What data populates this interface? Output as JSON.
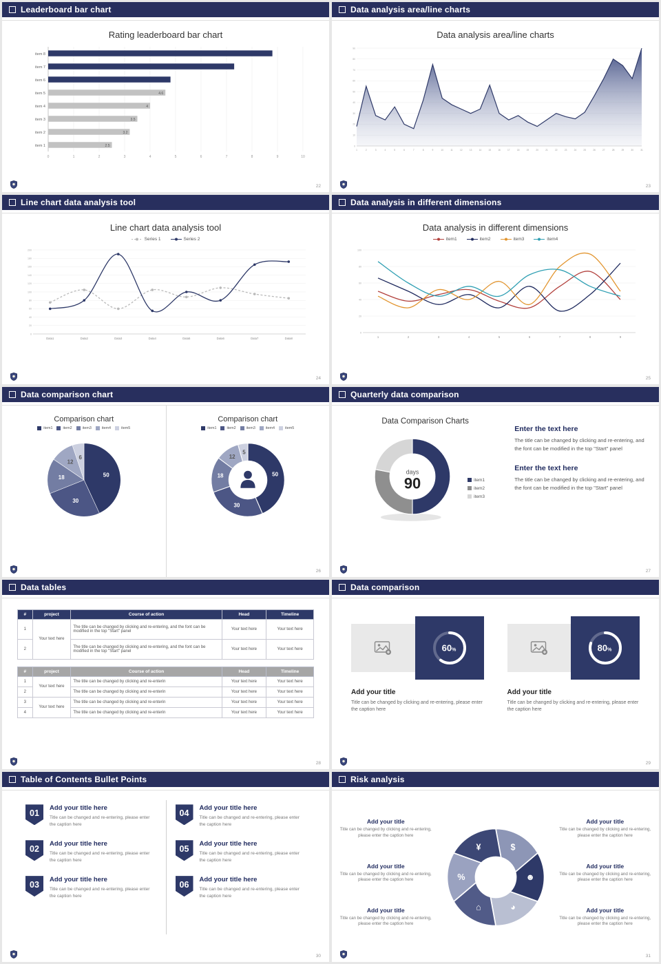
{
  "theme": {
    "header_bg": "#282f5e",
    "navy": "#2e3968",
    "gray_bar": "#c2c2c2"
  },
  "slides": {
    "s1": {
      "header": "Leaderboard bar chart",
      "page": "22",
      "title": "Rating leaderboard bar chart",
      "chart_data": {
        "type": "hbar",
        "categories": [
          "item 1",
          "item 2",
          "item 3",
          "item 4",
          "item 5",
          "item 6",
          "item 7",
          "item 8"
        ],
        "values": [
          2.5,
          3.2,
          3.5,
          4,
          4.6,
          4.8,
          7.3,
          8.8
        ],
        "value_labels": [
          "2.5",
          "3.2",
          "3.5",
          "4",
          "4.6",
          "",
          "",
          ""
        ],
        "bar_colors": [
          "#c2c2c2",
          "#c2c2c2",
          "#c2c2c2",
          "#c2c2c2",
          "#c2c2c2",
          "#2e3968",
          "#2e3968",
          "#2e3968"
        ],
        "xlim": [
          0,
          10
        ],
        "x_ticks": [
          0,
          1,
          2,
          3,
          4,
          5,
          6,
          7,
          8,
          9,
          10
        ]
      }
    },
    "s2": {
      "header": "Data analysis area/line charts",
      "page": "23",
      "title": "Data analysis area/line charts",
      "chart_data": {
        "type": "area",
        "x": [
          1,
          2,
          3,
          4,
          5,
          6,
          7,
          8,
          9,
          10,
          11,
          12,
          13,
          14,
          15,
          16,
          17,
          18,
          19,
          20,
          21,
          22,
          23,
          24,
          25,
          26,
          27,
          28,
          29,
          30,
          31
        ],
        "values": [
          18,
          55,
          28,
          24,
          36,
          20,
          16,
          42,
          75,
          44,
          38,
          34,
          30,
          34,
          56,
          30,
          24,
          28,
          22,
          18,
          24,
          30,
          27,
          25,
          31,
          46,
          62,
          80,
          74,
          62,
          90
        ],
        "ylim": [
          0,
          90
        ],
        "y_ticks": [
          0,
          10,
          20,
          30,
          40,
          50,
          60,
          70,
          80,
          90
        ],
        "line_color": "#2e3968"
      }
    },
    "s3": {
      "header": "Line chart data analysis tool",
      "page": "24",
      "title": "Line chart data analysis tool",
      "chart_data": {
        "type": "line",
        "categories": [
          "Data1",
          "Data2",
          "Data3",
          "Data4",
          "Data5",
          "Data6",
          "Data7",
          "Data8"
        ],
        "series": [
          {
            "name": "Series 1",
            "color": "#b9b9b9",
            "dash": "3,2.5",
            "values": [
              75,
              105,
              60,
              105,
              88,
              110,
              95,
              85
            ]
          },
          {
            "name": "Series 2",
            "color": "#2e3968",
            "values": [
              60,
              80,
              190,
              55,
              100,
              80,
              165,
              172
            ]
          }
        ],
        "ylim": [
          0,
          200
        ],
        "y_step": 20,
        "markers": true,
        "smooth": true
      }
    },
    "s4": {
      "header": "Data analysis in different dimensions",
      "page": "25",
      "title": "Data analysis in different dimensions",
      "chart_data": {
        "type": "line",
        "categories": [
          "1",
          "2",
          "3",
          "4",
          "5",
          "6",
          "7",
          "8",
          "9"
        ],
        "series": [
          {
            "name": "item1",
            "color": "#b2403c",
            "values": [
              50,
              38,
              46,
              52,
              38,
              30,
              56,
              74,
              40
            ]
          },
          {
            "name": "item2",
            "color": "#1f2a5e",
            "values": [
              66,
              50,
              34,
              46,
              30,
              56,
              26,
              46,
              84
            ]
          },
          {
            "name": "item3",
            "color": "#e2952f",
            "values": [
              44,
              30,
              52,
              40,
              62,
              34,
              80,
              95,
              50
            ]
          },
          {
            "name": "item4",
            "color": "#2f9fb3",
            "values": [
              86,
              60,
              44,
              56,
              44,
              70,
              76,
              56,
              44
            ]
          }
        ],
        "ylim": [
          0,
          100
        ],
        "y_step": 20,
        "markers": false,
        "smooth": true
      }
    },
    "s5": {
      "header": "Data comparison chart",
      "page": "26",
      "left": {
        "title": "Comparison chart",
        "legend": [
          {
            "label": "item1",
            "color": "#2e3968"
          },
          {
            "label": "item2",
            "color": "#4c5685"
          },
          {
            "label": "item3",
            "color": "#737da3"
          },
          {
            "label": "item4",
            "color": "#9fa7c3"
          },
          {
            "label": "item5",
            "color": "#ccd0e0"
          }
        ],
        "chart_data": {
          "type": "pie",
          "values": [
            50,
            30,
            18,
            12,
            6
          ],
          "labels": [
            "50",
            "30",
            "18",
            "12",
            "6"
          ],
          "colors": [
            "#2e3968",
            "#4c5685",
            "#737da3",
            "#9fa7c3",
            "#ccd0e0"
          ],
          "label_colors": [
            "#fff",
            "#fff",
            "#fff",
            "#555",
            "#555"
          ]
        }
      },
      "right": {
        "title": "Comparison chart",
        "legend": [
          {
            "label": "item1",
            "color": "#2e3968"
          },
          {
            "label": "item2",
            "color": "#4c5685"
          },
          {
            "label": "item3",
            "color": "#737da3"
          },
          {
            "label": "item4",
            "color": "#9fa7c3"
          },
          {
            "label": "item5",
            "color": "#ccd0e0"
          }
        ],
        "chart_data": {
          "type": "pie",
          "inner_ratio": 0.52,
          "values": [
            50,
            30,
            18,
            12,
            5
          ],
          "labels": [
            "50",
            "30",
            "18",
            "12",
            "5"
          ],
          "colors": [
            "#2e3968",
            "#4c5685",
            "#737da3",
            "#9fa7c3",
            "#ccd0e0"
          ],
          "label_colors": [
            "#fff",
            "#fff",
            "#fff",
            "#555",
            "#555"
          ],
          "center_icon": "person"
        }
      }
    },
    "s6": {
      "header": "Quarterly data comparison",
      "page": "27",
      "title": "Data Comparison Charts",
      "chart_data": {
        "type": "pie",
        "inner_ratio": 0.6,
        "values": [
          50,
          28,
          22
        ],
        "colors": [
          "#2e3968",
          "#8f8f8f",
          "#d6d6d6"
        ],
        "center_text": [
          "days",
          "90"
        ],
        "shadow": true
      },
      "legend": [
        {
          "label": "item1",
          "color": "#2e3968"
        },
        {
          "label": "item2",
          "color": "#8f8f8f"
        },
        {
          "label": "item3",
          "color": "#d6d6d6"
        }
      ],
      "blocks": [
        {
          "title": "Enter the text here",
          "body": "The title can be changed by clicking and re-entering, and the font can be modified in the top \"Start\" panel"
        },
        {
          "title": "Enter the text here",
          "body": "The title can be changed by clicking and re-entering, and the font can be modified in the top \"Start\" panel"
        }
      ]
    },
    "s7": {
      "header": "Data tables",
      "page": "28",
      "table1": {
        "header_bg": "#2e3968",
        "header": [
          "#",
          "project",
          "Course of action",
          "Head",
          "Timeline"
        ],
        "col_widths": [
          "5%",
          "13%",
          "51%",
          "15%",
          "16%"
        ],
        "rows": [
          [
            {
              "t": "1"
            },
            {
              "t": "Your text here",
              "rs": 2
            },
            {
              "t": "The title can be changed by clicking and re-entering, and the font can be modified in the top \"Start\" panel",
              "align": "left"
            },
            {
              "t": "Your text here"
            },
            {
              "t": "Your text here"
            }
          ],
          [
            {
              "t": "2"
            },
            {
              "t": "The title can be changed by clicking and re-entering, and the font can be modified in the top \"Start\" panel",
              "align": "left"
            },
            {
              "t": "Your text here"
            },
            {
              "t": "Your text here"
            }
          ]
        ]
      },
      "table2": {
        "header_bg": "#a6a6a6",
        "header": [
          "#",
          "project",
          "Course of action",
          "Head",
          "Timeline"
        ],
        "col_widths": [
          "5%",
          "13%",
          "51%",
          "15%",
          "16%"
        ],
        "rows": [
          [
            {
              "t": "1"
            },
            {
              "t": "Your text here",
              "rs": 2
            },
            {
              "t": "The title can be changed by clicking and re-enterin",
              "align": "left",
              "nowrap": true
            },
            {
              "t": "Your text here"
            },
            {
              "t": "Your text here"
            }
          ],
          [
            {
              "t": "2"
            },
            {
              "t": "The title can be changed by clicking and re-enterin",
              "align": "left",
              "nowrap": true
            },
            {
              "t": "Your text here"
            },
            {
              "t": "Your text here"
            }
          ],
          [
            {
              "t": "3"
            },
            {
              "t": "Your text here",
              "rs": 2
            },
            {
              "t": "The title can be changed by clicking and re-enterin",
              "align": "left",
              "nowrap": true
            },
            {
              "t": "Your text here"
            },
            {
              "t": "Your text here"
            }
          ],
          [
            {
              "t": "4"
            },
            {
              "t": "The title can be changed by clicking and re-enterin",
              "align": "left",
              "nowrap": true
            },
            {
              "t": "Your text here"
            },
            {
              "t": "Your text here"
            }
          ]
        ]
      }
    },
    "s8": {
      "header": "Data comparison",
      "page": "29",
      "cards": [
        {
          "ring": {
            "type": "progress",
            "percent": 60
          },
          "title": "Add your title",
          "caption": "Title can be changed by clicking and re-entering, please enter the caption here"
        },
        {
          "ring": {
            "type": "progress",
            "percent": 80
          },
          "title": "Add your title",
          "caption": "Title can be changed by clicking and re-entering, please enter the caption here"
        }
      ]
    },
    "s9": {
      "header": "Table of Contents Bullet Points",
      "page": "30",
      "items": [
        {
          "number": "01",
          "title": "Add your title here",
          "caption": "Title can be changed and re-entering, please enter the caption here"
        },
        {
          "number": "02",
          "title": "Add your title here",
          "caption": "Title can be changed and re-entering, please enter the caption here"
        },
        {
          "number": "03",
          "title": "Add your title here",
          "caption": "Title can be changed and re-entering, please enter the caption here"
        },
        {
          "number": "04",
          "title": "Add your title here",
          "caption": "Title can be changed and re-entering, please enter the caption here"
        },
        {
          "number": "05",
          "title": "Add your title here",
          "caption": "Title can be changed and re-entering, please enter the caption here"
        },
        {
          "number": "06",
          "title": "Add your title here",
          "caption": "Title can be changed and re-entering, please enter the caption here"
        }
      ]
    },
    "s10": {
      "header": "Risk analysis",
      "page": "31",
      "blocks": [
        {
          "title": "Add your title",
          "caption": "Title can be changed by clicking and re-entering, please enter the caption here"
        },
        {
          "title": "Add your title",
          "caption": "Title can be changed by clicking and re-entering, please enter the caption here"
        },
        {
          "title": "Add your title",
          "caption": "Title can be changed by clicking and re-entering, please enter the caption here"
        },
        {
          "title": "Add your title",
          "caption": "Title can be changed by clicking and re-entering, please enter the caption here"
        },
        {
          "title": "Add your title",
          "caption": "Title can be changed by clicking and re-entering, please enter the caption here"
        },
        {
          "title": "Add your title",
          "caption": "Title can be changed by clicking and re-entering, please enter the caption here"
        }
      ],
      "wheel": {
        "segments": [
          {
            "name": "coins-icon",
            "glyph": "$",
            "color": "#8d96b6"
          },
          {
            "name": "people-icon",
            "glyph": "☻",
            "color": "#2e3968"
          },
          {
            "name": "pie-chart-icon",
            "glyph": "◕",
            "color": "#b9bfd2"
          },
          {
            "name": "building-icon",
            "glyph": "⌂",
            "color": "#515b88"
          },
          {
            "name": "percent-icon",
            "glyph": "%",
            "color": "#9aa2c0"
          },
          {
            "name": "yen-icon",
            "glyph": "¥",
            "color": "#3c4775"
          }
        ]
      }
    }
  }
}
